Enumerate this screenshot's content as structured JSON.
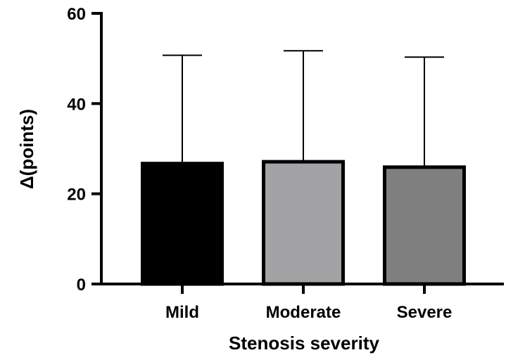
{
  "chart_data": {
    "type": "bar",
    "title": "",
    "xlabel": "Stenosis severity",
    "ylabel": "Δ(points)",
    "ylim": [
      0,
      60
    ],
    "yticks": [
      0,
      20,
      40,
      60
    ],
    "grid": false,
    "legend": "none",
    "categories": [
      "Mild",
      "Moderate",
      "Severe"
    ],
    "series": [
      {
        "values": [
          26.7,
          27.1,
          25.9
        ],
        "error_upper": [
          50.7,
          51.7,
          50.3
        ]
      }
    ],
    "colors": [
      "#000000",
      "#a3a3a6",
      "#7f7f7f"
    ],
    "error_bars": "upper only (mean + SD)"
  }
}
